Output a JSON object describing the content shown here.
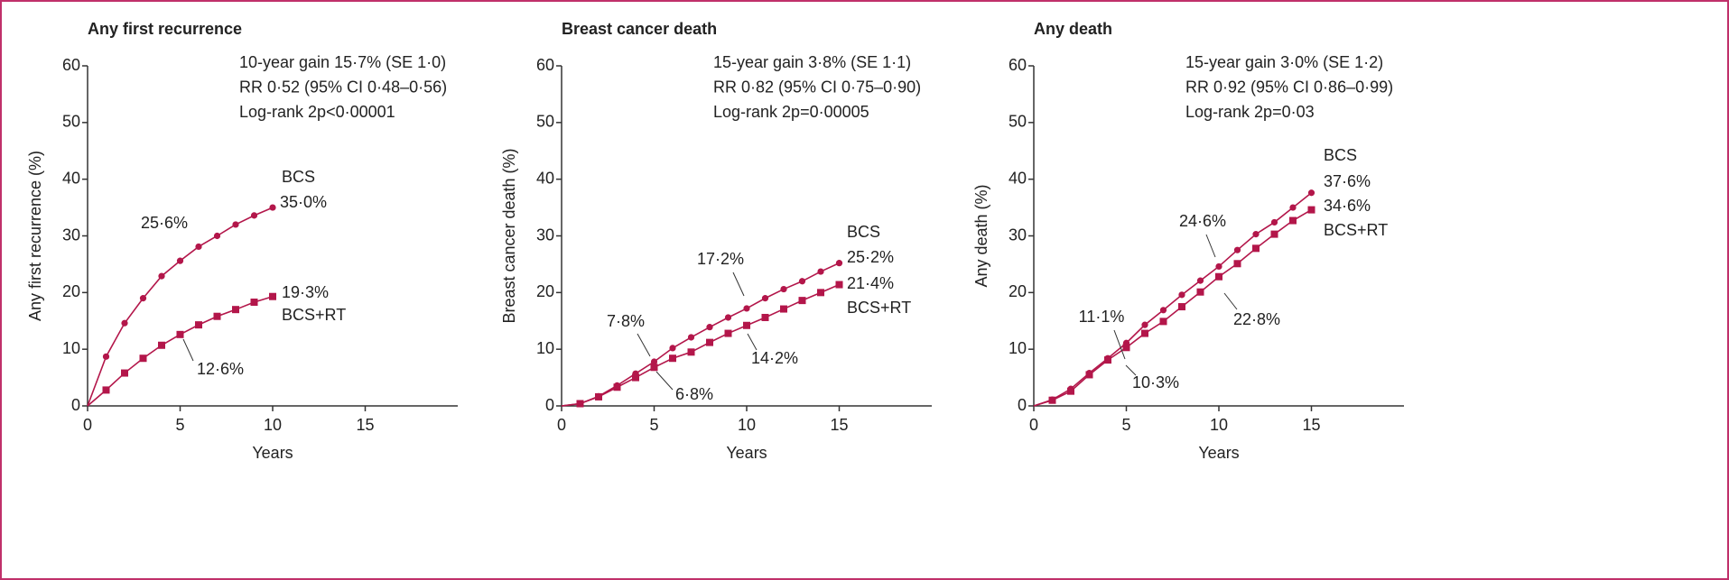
{
  "chart_data": [
    {
      "type": "line",
      "title": "Any first recurrence",
      "xlabel": "Years",
      "ylabel": "Any first recurrence (%)",
      "x": [
        0,
        1,
        2,
        3,
        4,
        5,
        6,
        7,
        8,
        9,
        10
      ],
      "series": [
        {
          "name": "BCS",
          "color": "#b3164a",
          "marker": "circle",
          "values": [
            0,
            8.7,
            14.6,
            19.0,
            22.9,
            25.6,
            28.1,
            30.0,
            32.0,
            33.6,
            35.0
          ]
        },
        {
          "name": "BCS+RT",
          "color": "#b3164a",
          "marker": "square",
          "values": [
            0,
            2.8,
            5.8,
            8.4,
            10.7,
            12.6,
            14.3,
            15.8,
            17.0,
            18.3,
            19.3
          ]
        }
      ],
      "xlim": [
        0,
        20
      ],
      "ylim": [
        0,
        60
      ],
      "xticks": [
        0,
        5,
        10,
        15
      ],
      "yticks": [
        0,
        10,
        20,
        30,
        40,
        50,
        60
      ],
      "stats": [
        "10-year gain 15·7% (SE 1·0)",
        "RR 0·52 (95% CI 0·48–0·56)",
        "Log-rank 2p<0·00001"
      ],
      "annotations": [
        "25·6%",
        "35·0%",
        "19·3%",
        "12·6%"
      ]
    },
    {
      "type": "line",
      "title": "Breast cancer death",
      "xlabel": "Years",
      "ylabel": "Breast cancer death (%)",
      "x": [
        0,
        1,
        2,
        3,
        4,
        5,
        6,
        7,
        8,
        9,
        10,
        11,
        12,
        13,
        14,
        15
      ],
      "series": [
        {
          "name": "BCS",
          "color": "#b3164a",
          "marker": "circle",
          "values": [
            0,
            0.4,
            1.7,
            3.6,
            5.7,
            7.8,
            10.2,
            12.1,
            13.9,
            15.6,
            17.2,
            19.0,
            20.6,
            22.0,
            23.7,
            25.2
          ]
        },
        {
          "name": "BCS+RT",
          "color": "#b3164a",
          "marker": "square",
          "values": [
            0,
            0.4,
            1.6,
            3.3,
            5.0,
            6.8,
            8.4,
            9.5,
            11.2,
            12.8,
            14.2,
            15.6,
            17.1,
            18.6,
            20.0,
            21.4
          ]
        }
      ],
      "xlim": [
        0,
        20
      ],
      "ylim": [
        0,
        60
      ],
      "xticks": [
        0,
        5,
        10,
        15
      ],
      "yticks": [
        0,
        10,
        20,
        30,
        40,
        50,
        60
      ],
      "stats": [
        "15-year gain 3·8% (SE 1·1)",
        "RR 0·82 (95% CI 0·75–0·90)",
        "Log-rank 2p=0·00005"
      ],
      "annotations": [
        "7·8%",
        "6·8%",
        "17·2%",
        "14·2%",
        "25·2%",
        "21·4%"
      ]
    },
    {
      "type": "line",
      "title": "Any death",
      "xlabel": "Years",
      "ylabel": "Any death (%)",
      "x": [
        0,
        1,
        2,
        3,
        4,
        5,
        6,
        7,
        8,
        9,
        10,
        11,
        12,
        13,
        14,
        15
      ],
      "series": [
        {
          "name": "BCS",
          "color": "#b3164a",
          "marker": "circle",
          "values": [
            0,
            1.1,
            3.0,
            5.8,
            8.4,
            11.1,
            14.3,
            16.9,
            19.6,
            22.1,
            24.6,
            27.5,
            30.3,
            32.4,
            35.0,
            37.6
          ]
        },
        {
          "name": "BCS+RT",
          "color": "#b3164a",
          "marker": "square",
          "values": [
            0,
            1.0,
            2.6,
            5.5,
            8.1,
            10.3,
            12.8,
            14.9,
            17.5,
            20.1,
            22.8,
            25.1,
            27.8,
            30.3,
            32.7,
            34.6
          ]
        }
      ],
      "xlim": [
        0,
        20
      ],
      "ylim": [
        0,
        60
      ],
      "xticks": [
        0,
        5,
        10,
        15
      ],
      "yticks": [
        0,
        10,
        20,
        30,
        40,
        50,
        60
      ],
      "stats": [
        "15-year gain 3·0% (SE 1·2)",
        "RR 0·92 (95% CI 0·86–0·99)",
        "Log-rank 2p=0·03"
      ],
      "annotations": [
        "11·1%",
        "10·3%",
        "24·6%",
        "22·8%",
        "37·6%",
        "34·6%"
      ]
    }
  ]
}
